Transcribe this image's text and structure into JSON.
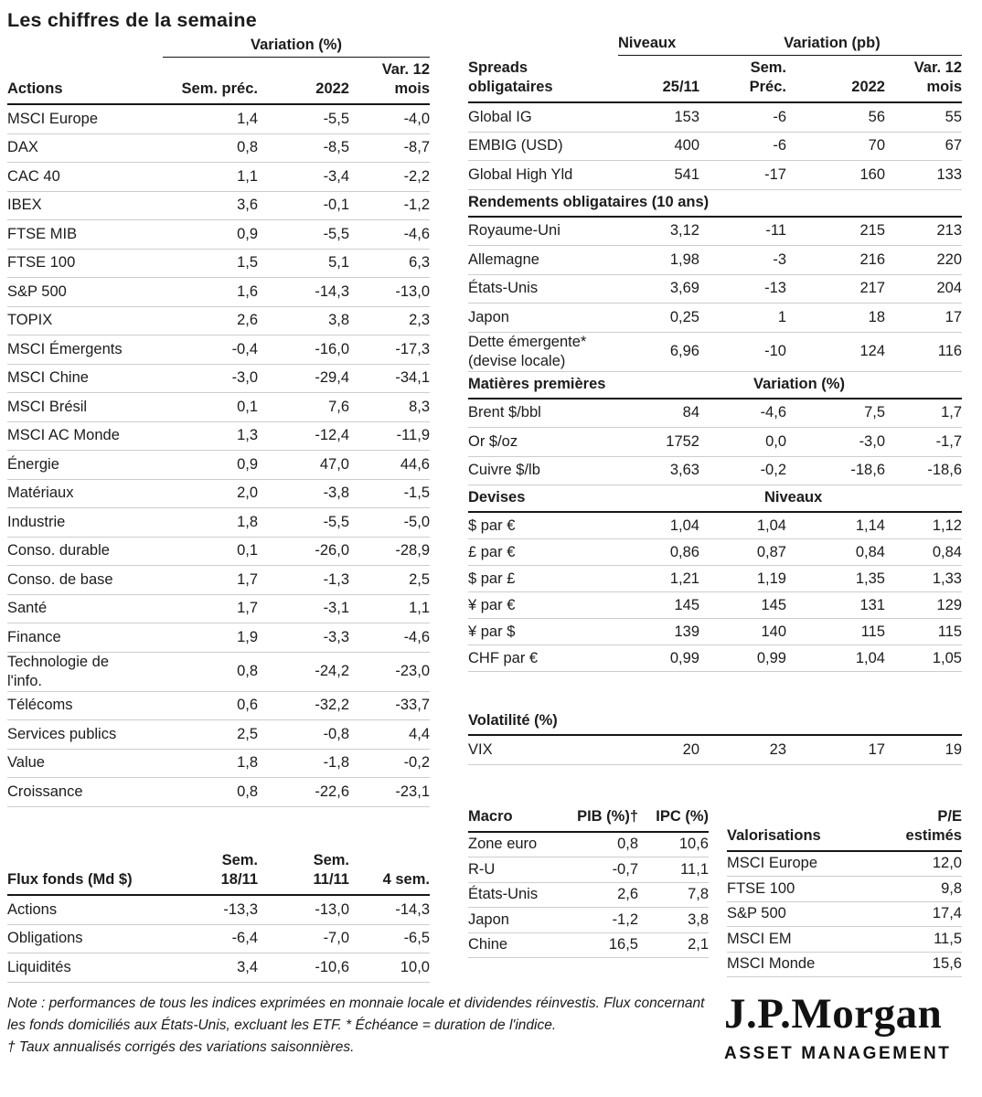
{
  "title": "Les chiffres de la semaine",
  "actions": {
    "group_header": "Variation (%)",
    "header_label": "Actions",
    "cols": [
      "Sem. préc.",
      "2022",
      "Var. 12\nmois"
    ],
    "rows": [
      {
        "label": "MSCI Europe",
        "v": [
          "1,4",
          "-5,5",
          "-4,0"
        ]
      },
      {
        "label": "DAX",
        "v": [
          "0,8",
          "-8,5",
          "-8,7"
        ]
      },
      {
        "label": "CAC 40",
        "v": [
          "1,1",
          "-3,4",
          "-2,2"
        ]
      },
      {
        "label": "IBEX",
        "v": [
          "3,6",
          "-0,1",
          "-1,2"
        ]
      },
      {
        "label": "FTSE MIB",
        "v": [
          "0,9",
          "-5,5",
          "-4,6"
        ]
      },
      {
        "label": "FTSE 100",
        "v": [
          "1,5",
          "5,1",
          "6,3"
        ]
      },
      {
        "label": "S&P 500",
        "v": [
          "1,6",
          "-14,3",
          "-13,0"
        ]
      },
      {
        "label": "TOPIX",
        "v": [
          "2,6",
          "3,8",
          "2,3"
        ]
      },
      {
        "label": "MSCI Émergents",
        "v": [
          "-0,4",
          "-16,0",
          "-17,3"
        ]
      },
      {
        "label": "MSCI Chine",
        "v": [
          "-3,0",
          "-29,4",
          "-34,1"
        ]
      },
      {
        "label": "MSCI Brésil",
        "v": [
          "0,1",
          "7,6",
          "8,3"
        ]
      },
      {
        "label": "MSCI AC Monde",
        "v": [
          "1,3",
          "-12,4",
          "-11,9"
        ]
      },
      {
        "label": "Énergie",
        "v": [
          "0,9",
          "47,0",
          "44,6"
        ]
      },
      {
        "label": "Matériaux",
        "v": [
          "2,0",
          "-3,8",
          "-1,5"
        ]
      },
      {
        "label": "Industrie",
        "v": [
          "1,8",
          "-5,5",
          "-5,0"
        ]
      },
      {
        "label": "Conso. durable",
        "v": [
          "0,1",
          "-26,0",
          "-28,9"
        ]
      },
      {
        "label": "Conso. de base",
        "v": [
          "1,7",
          "-1,3",
          "2,5"
        ]
      },
      {
        "label": "Santé",
        "v": [
          "1,7",
          "-3,1",
          "1,1"
        ]
      },
      {
        "label": "Finance",
        "v": [
          "1,9",
          "-3,3",
          "-4,6"
        ]
      },
      {
        "label": "Technologie de\nl'info.",
        "v": [
          "0,8",
          "-24,2",
          "-23,0"
        ]
      },
      {
        "label": "Télécoms",
        "v": [
          "0,6",
          "-32,2",
          "-33,7"
        ]
      },
      {
        "label": "Services publics",
        "v": [
          "2,5",
          "-0,8",
          "4,4"
        ]
      },
      {
        "label": "Value",
        "v": [
          "1,8",
          "-1,8",
          "-0,2"
        ]
      },
      {
        "label": "Croissance",
        "v": [
          "0,8",
          "-22,6",
          "-23,1"
        ]
      }
    ]
  },
  "flux": {
    "header_label": "Flux fonds (Md $)",
    "cols": [
      "Sem.\n18/11",
      "Sem.\n11/11",
      "4 sem."
    ],
    "rows": [
      {
        "label": "Actions",
        "v": [
          "-13,3",
          "-13,0",
          "-14,3"
        ]
      },
      {
        "label": "Obligations",
        "v": [
          "-6,4",
          "-7,0",
          "-6,5"
        ]
      },
      {
        "label": "Liquidités",
        "v": [
          "3,4",
          "-10,6",
          "10,0"
        ]
      }
    ]
  },
  "right_group": {
    "niveaux": "Niveaux",
    "variation": "Variation (pb)"
  },
  "spreads": {
    "header_label": "Spreads\nobligataires",
    "cols": [
      "25/11",
      "Sem.\nPréc.",
      "2022",
      "Var. 12\nmois"
    ],
    "rows": [
      {
        "label": "Global IG",
        "v": [
          "153",
          "-6",
          "56",
          "55"
        ]
      },
      {
        "label": "EMBIG (USD)",
        "v": [
          "400",
          "-6",
          "70",
          "67"
        ]
      },
      {
        "label": "Global High Yld",
        "v": [
          "541",
          "-17",
          "160",
          "133"
        ]
      }
    ]
  },
  "rendements": {
    "title": "Rendements obligataires (10 ans)",
    "rows": [
      {
        "label": "Royaume-Uni",
        "v": [
          "3,12",
          "-11",
          "215",
          "213"
        ]
      },
      {
        "label": "Allemagne",
        "v": [
          "1,98",
          "-3",
          "216",
          "220"
        ]
      },
      {
        "label": "États-Unis",
        "v": [
          "3,69",
          "-13",
          "217",
          "204"
        ]
      },
      {
        "label": "Japon",
        "v": [
          "0,25",
          "1",
          "18",
          "17"
        ]
      },
      {
        "label": "Dette émergente*\n(devise locale)",
        "v": [
          "6,96",
          "-10",
          "124",
          "116"
        ]
      }
    ]
  },
  "matieres": {
    "title": "Matières premières",
    "sub": "Variation (%)",
    "rows": [
      {
        "label": "Brent $/bbl",
        "v": [
          "84",
          "-4,6",
          "7,5",
          "1,7"
        ]
      },
      {
        "label": "Or $/oz",
        "v": [
          "1752",
          "0,0",
          "-3,0",
          "-1,7"
        ]
      },
      {
        "label": "Cuivre $/lb",
        "v": [
          "3,63",
          "-0,2",
          "-18,6",
          "-18,6"
        ]
      }
    ]
  },
  "devises": {
    "title": "Devises",
    "sub": "Niveaux",
    "rows": [
      {
        "label": "$ par €",
        "v": [
          "1,04",
          "1,04",
          "1,14",
          "1,12"
        ]
      },
      {
        "label": "£ par €",
        "v": [
          "0,86",
          "0,87",
          "0,84",
          "0,84"
        ]
      },
      {
        "label": "$ par £",
        "v": [
          "1,21",
          "1,19",
          "1,35",
          "1,33"
        ]
      },
      {
        "label": "¥ par €",
        "v": [
          "145",
          "145",
          "131",
          "129"
        ]
      },
      {
        "label": "¥ par $",
        "v": [
          "139",
          "140",
          "115",
          "115"
        ]
      },
      {
        "label": "CHF par €",
        "v": [
          "0,99",
          "0,99",
          "1,04",
          "1,05"
        ]
      }
    ]
  },
  "volatilite": {
    "title": "Volatilité (%)",
    "rows": [
      {
        "label": "VIX",
        "v": [
          "20",
          "23",
          "17",
          "19"
        ]
      }
    ]
  },
  "macro": {
    "header_label": "Macro",
    "cols": [
      "PIB (%)†",
      "IPC (%)"
    ],
    "rows": [
      {
        "label": "Zone euro",
        "v": [
          "0,8",
          "10,6"
        ]
      },
      {
        "label": "R-U",
        "v": [
          "-0,7",
          "11,1"
        ]
      },
      {
        "label": "États-Unis",
        "v": [
          "2,6",
          "7,8"
        ]
      },
      {
        "label": "Japon",
        "v": [
          "-1,2",
          "3,8"
        ]
      },
      {
        "label": "Chine",
        "v": [
          "16,5",
          "2,1"
        ]
      }
    ]
  },
  "valorisations": {
    "header_label": "Valorisations",
    "cols": [
      "P/E\nestimés"
    ],
    "rows": [
      {
        "label": "MSCI Europe",
        "v": [
          "12,0"
        ]
      },
      {
        "label": "FTSE 100",
        "v": [
          "9,8"
        ]
      },
      {
        "label": "S&P 500",
        "v": [
          "17,4"
        ]
      },
      {
        "label": "MSCI EM",
        "v": [
          "11,5"
        ]
      },
      {
        "label": "MSCI Monde",
        "v": [
          "15,6"
        ]
      }
    ]
  },
  "note": {
    "p1": "Note : performances de tous les indices exprimées en monnaie locale et dividendes réinvestis. Flux concernant les fonds domiciliés aux États-Unis, excluant les ETF. * Échéance = duration de l'indice.",
    "p2": "† Taux annualisés corrigés des variations saisonnières."
  },
  "logo": {
    "brand": "J.P.Morgan",
    "sub": "ASSET MANAGEMENT"
  },
  "colors": {
    "text": "#1c1c1c",
    "rule_strong": "#161616",
    "rule_light": "#cdcdcd"
  }
}
